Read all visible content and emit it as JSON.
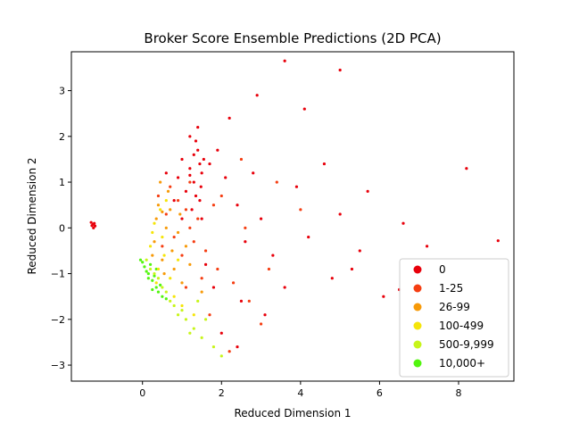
{
  "chart_data": {
    "type": "scatter",
    "title": "Broker Score Ensemble Predictions (2D PCA)",
    "xlabel": "Reduced Dimension 1",
    "ylabel": "Reduced Dimension 2",
    "xlim": [
      -1.8,
      9.4
    ],
    "ylim": [
      -3.35,
      3.85
    ],
    "xticks": [
      0,
      2,
      4,
      6,
      8
    ],
    "yticks": [
      -3,
      -2,
      -1,
      0,
      1,
      2,
      3
    ],
    "grid": false,
    "legend_position": "lower-right",
    "series": [
      {
        "name": "0",
        "color": "#e8000b",
        "points": [
          [
            -1.25,
            0.08
          ],
          [
            -1.22,
            0.1
          ],
          [
            -1.28,
            0.05
          ],
          [
            -1.2,
            0.04
          ],
          [
            -1.3,
            0.12
          ],
          [
            -1.24,
            0.0
          ],
          [
            1.0,
            1.5
          ],
          [
            1.2,
            1.3
          ],
          [
            1.4,
            1.7
          ],
          [
            1.3,
            1.0
          ],
          [
            1.5,
            1.2
          ],
          [
            1.1,
            0.8
          ],
          [
            0.9,
            1.1
          ],
          [
            1.45,
            0.6
          ],
          [
            1.35,
            1.9
          ],
          [
            1.55,
            1.5
          ],
          [
            1.25,
            0.4
          ],
          [
            0.8,
            0.6
          ],
          [
            1.2,
            2.0
          ],
          [
            1.48,
            0.9
          ],
          [
            1.7,
            1.4
          ],
          [
            1.9,
            1.7
          ],
          [
            2.1,
            1.1
          ],
          [
            2.4,
            0.5
          ],
          [
            2.6,
            -0.3
          ],
          [
            2.8,
            1.2
          ],
          [
            3.0,
            0.2
          ],
          [
            3.3,
            -0.6
          ],
          [
            3.6,
            -1.3
          ],
          [
            3.9,
            0.9
          ],
          [
            4.2,
            -0.2
          ],
          [
            4.6,
            1.4
          ],
          [
            5.0,
            0.3
          ],
          [
            5.3,
            -0.9
          ],
          [
            5.7,
            0.8
          ],
          [
            6.1,
            -1.5
          ],
          [
            6.6,
            0.1
          ],
          [
            7.2,
            -0.4
          ],
          [
            8.2,
            1.3
          ],
          [
            9.0,
            -0.28
          ],
          [
            3.6,
            3.65
          ],
          [
            5.0,
            3.45
          ],
          [
            4.1,
            2.6
          ],
          [
            2.2,
            2.4
          ],
          [
            2.5,
            -1.6
          ],
          [
            3.1,
            -1.9
          ],
          [
            2.9,
            2.9
          ],
          [
            4.8,
            -1.1
          ],
          [
            5.5,
            -0.5
          ],
          [
            6.5,
            -1.35
          ],
          [
            1.6,
            -0.8
          ],
          [
            2.0,
            -2.3
          ],
          [
            2.4,
            -2.6
          ],
          [
            1.8,
            -1.3
          ],
          [
            1.0,
            0.2
          ],
          [
            1.5,
            0.2
          ],
          [
            1.4,
            2.2
          ],
          [
            0.6,
            1.2
          ],
          [
            1.3,
            1.6
          ],
          [
            1.45,
            1.4
          ],
          [
            1.35,
            0.7
          ],
          [
            1.2,
            1.15
          ]
        ]
      },
      {
        "name": "1-25",
        "color": "#f53e12",
        "points": [
          [
            0.9,
            0.6
          ],
          [
            1.1,
            0.4
          ],
          [
            0.7,
            0.9
          ],
          [
            1.2,
            0.0
          ],
          [
            0.8,
            -0.2
          ],
          [
            1.0,
            -0.6
          ],
          [
            1.3,
            -0.3
          ],
          [
            0.6,
            0.3
          ],
          [
            1.4,
            0.2
          ],
          [
            1.6,
            -0.5
          ],
          [
            1.9,
            -0.9
          ],
          [
            2.3,
            -1.2
          ],
          [
            2.7,
            -1.6
          ],
          [
            3.2,
            -0.9
          ],
          [
            2.0,
            0.7
          ],
          [
            2.5,
            1.5
          ],
          [
            3.4,
            1.0
          ],
          [
            4.0,
            0.4
          ],
          [
            1.5,
            -1.1
          ],
          [
            1.1,
            -1.3
          ],
          [
            0.5,
            -0.4
          ],
          [
            0.4,
            0.7
          ],
          [
            1.2,
            1.0
          ],
          [
            2.2,
            -2.7
          ],
          [
            1.7,
            -1.9
          ],
          [
            3.0,
            -2.1
          ],
          [
            2.6,
            0.0
          ],
          [
            1.8,
            0.5
          ]
        ]
      },
      {
        "name": "26-99",
        "color": "#f79a09",
        "points": [
          [
            0.4,
            0.5
          ],
          [
            0.6,
            0.0
          ],
          [
            0.3,
            -0.3
          ],
          [
            0.5,
            -0.7
          ],
          [
            0.8,
            -0.9
          ],
          [
            0.7,
            0.4
          ],
          [
            0.45,
            1.0
          ],
          [
            0.9,
            -0.1
          ],
          [
            1.0,
            -1.2
          ],
          [
            0.35,
            0.2
          ],
          [
            0.55,
            -1.0
          ],
          [
            1.2,
            -0.8
          ],
          [
            0.25,
            -0.6
          ],
          [
            0.65,
            0.8
          ],
          [
            0.95,
            0.3
          ],
          [
            1.5,
            -1.4
          ],
          [
            0.75,
            -0.5
          ],
          [
            0.5,
            0.35
          ],
          [
            1.1,
            -0.4
          ]
        ]
      },
      {
        "name": "100-499",
        "color": "#f5e50a",
        "points": [
          [
            0.3,
            0.1
          ],
          [
            0.5,
            -0.2
          ],
          [
            0.4,
            -0.9
          ],
          [
            0.7,
            -1.1
          ],
          [
            0.2,
            -0.4
          ],
          [
            0.6,
            0.6
          ],
          [
            0.35,
            -1.2
          ],
          [
            0.8,
            -1.5
          ],
          [
            0.9,
            -0.7
          ],
          [
            0.45,
            0.4
          ],
          [
            1.0,
            -1.7
          ],
          [
            0.55,
            -0.6
          ],
          [
            1.3,
            -1.9
          ],
          [
            0.25,
            -0.1
          ]
        ]
      },
      {
        "name": "500-9,999",
        "color": "#c7f51a",
        "points": [
          [
            0.1,
            -0.7
          ],
          [
            0.3,
            -1.0
          ],
          [
            0.5,
            -1.3
          ],
          [
            0.7,
            -1.6
          ],
          [
            0.9,
            -1.9
          ],
          [
            1.1,
            -2.0
          ],
          [
            1.3,
            -2.2
          ],
          [
            1.5,
            -2.4
          ],
          [
            1.8,
            -2.6
          ],
          [
            0.2,
            -0.9
          ],
          [
            0.6,
            -1.4
          ],
          [
            1.0,
            -1.8
          ],
          [
            1.2,
            -2.3
          ],
          [
            0.4,
            -1.1
          ],
          [
            1.6,
            -2.0
          ],
          [
            0.8,
            -1.7
          ],
          [
            2.0,
            -2.8
          ],
          [
            1.4,
            -1.6
          ]
        ]
      },
      {
        "name": "10,000+",
        "color": "#52f50f",
        "points": [
          [
            -0.05,
            -0.7
          ],
          [
            0.05,
            -0.85
          ],
          [
            0.15,
            -1.0
          ],
          [
            0.25,
            -1.15
          ],
          [
            0.35,
            -1.3
          ],
          [
            0.1,
            -0.95
          ],
          [
            0.2,
            -0.8
          ],
          [
            0.3,
            -1.05
          ],
          [
            0.45,
            -1.25
          ],
          [
            0.0,
            -0.75
          ],
          [
            0.4,
            -1.4
          ],
          [
            0.5,
            -1.5
          ],
          [
            0.15,
            -1.1
          ],
          [
            0.6,
            -1.55
          ],
          [
            0.35,
            -0.9
          ],
          [
            0.25,
            -1.35
          ]
        ]
      }
    ]
  }
}
